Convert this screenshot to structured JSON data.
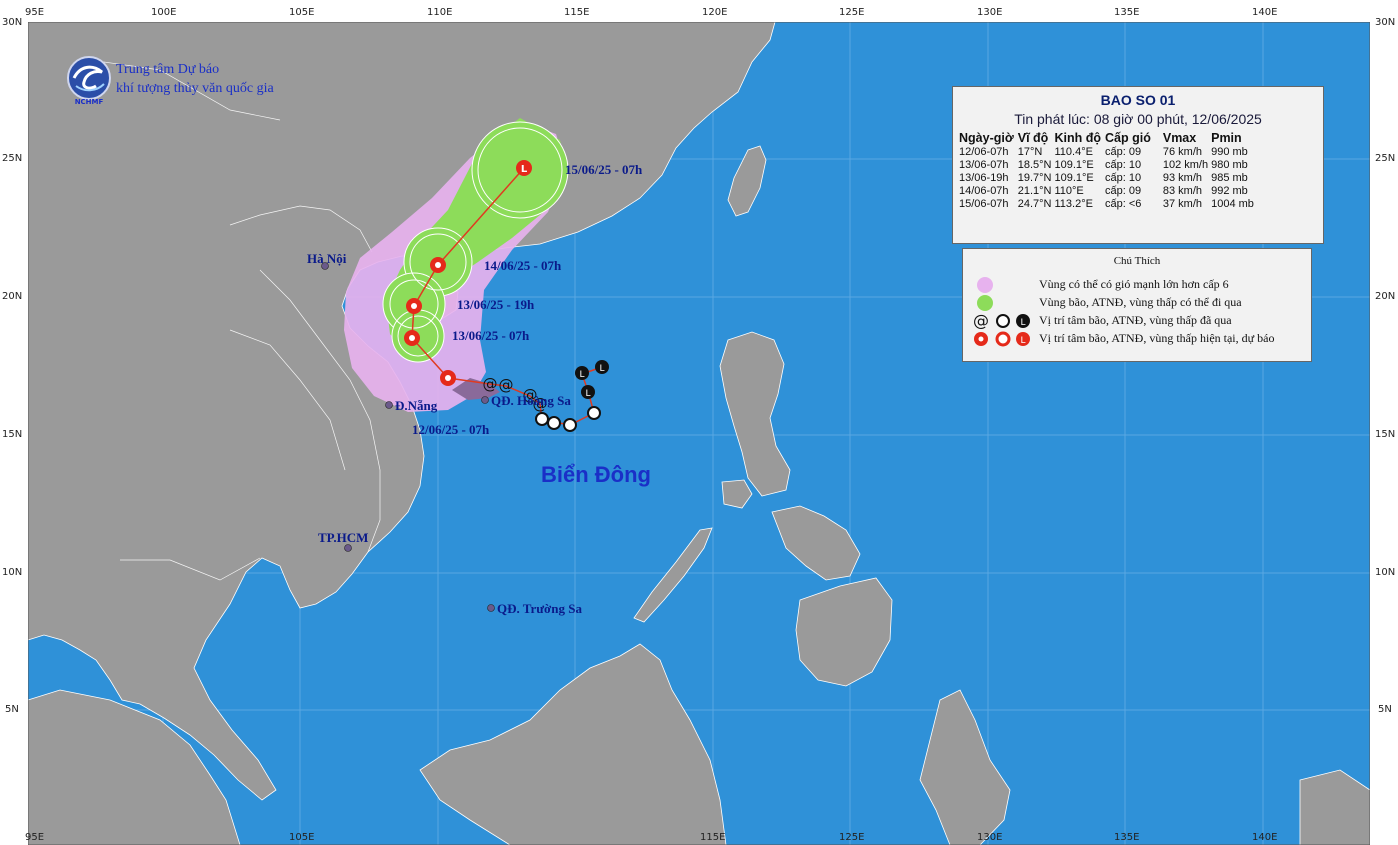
{
  "map": {
    "top_axis_labels": [
      "95E",
      "100E",
      "105E",
      "110E",
      "115E",
      "120E",
      "125E",
      "130E",
      "135E",
      "140E"
    ],
    "bottom_axis_labels": [
      "95E",
      "105E",
      "115E",
      "125E",
      "130E",
      "135E",
      "140E"
    ],
    "left_axis_labels": [
      "30N",
      "25N",
      "20N",
      "15N",
      "10N",
      "5N"
    ],
    "right_axis_labels": [
      "30N",
      "25N",
      "20N",
      "15N",
      "10N",
      "5N"
    ],
    "sea_label": "Biển Đông",
    "places": {
      "hanoi": "Hà Nội",
      "danang": "Đ.Nẵng",
      "hcm": "TP.HCM",
      "hoangsa": "QĐ. Hoàng Sa",
      "truongsa": "QĐ. Trường Sa"
    },
    "forecast_labels": [
      "15/06/25 - 07h",
      "14/06/25 - 07h",
      "13/06/25 - 19h",
      "13/06/25 - 07h",
      "12/06/25 - 07h"
    ],
    "colors": {
      "sea": "#2f91d8",
      "land": "#9a9a9a",
      "cone": "#e7b2ee",
      "storm_area": "#8ddc5a",
      "track": "#e03a20",
      "past": "#111111"
    }
  },
  "organization": {
    "line1": "Trung tâm Dự báo",
    "line2": "khí tượng thủy văn quốc gia",
    "logo_text": "NCHMF"
  },
  "bulletin": {
    "title": "BAO SO 01",
    "issued": "Tin phát lúc: 08 giờ 00 phút, 12/06/2025",
    "headers": [
      "Ngày-giờ",
      "Vĩ độ",
      "Kinh độ",
      "Cấp gió",
      "Vmax",
      "Pmin"
    ],
    "rows": [
      [
        "12/06-07h",
        "17°N",
        "110.4°E",
        "cấp: 09",
        "76 km/h",
        "990 mb"
      ],
      [
        "13/06-07h",
        "18.5°N",
        "109.1°E",
        "cấp: 10",
        "102 km/h",
        "980 mb"
      ],
      [
        "13/06-19h",
        "19.7°N",
        "109.1°E",
        "cấp: 10",
        "93 km/h",
        "985 mb"
      ],
      [
        "14/06-07h",
        "21.1°N",
        "110°E",
        "cấp: 09",
        "83 km/h",
        "992 mb"
      ],
      [
        "15/06-07h",
        "24.7°N",
        "113.2°E",
        "cấp: <6",
        "37 km/h",
        "1004 mb"
      ]
    ]
  },
  "legend": {
    "title": "Chú Thích",
    "items": [
      "Vùng có thể có gió mạnh lớn hơn cấp 6",
      "Vùng bão, ATNĐ, vùng thấp có thể đi qua",
      "Vị trí tâm bão, ATNĐ, vùng thấp đã qua",
      "Vị trí tâm bão, ATNĐ, vùng thấp hiện tại, dự báo"
    ]
  }
}
